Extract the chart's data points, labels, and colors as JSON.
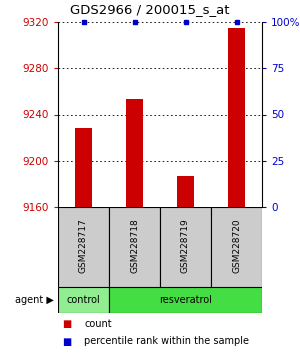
{
  "title": "GDS2966 / 200015_s_at",
  "samples": [
    "GSM228717",
    "GSM228718",
    "GSM228719",
    "GSM228720"
  ],
  "count_values": [
    9228,
    9253,
    9187,
    9315
  ],
  "percentile_values": [
    100,
    100,
    100,
    100
  ],
  "ymin": 9160,
  "ymax": 9320,
  "yticks": [
    9160,
    9200,
    9240,
    9280,
    9320
  ],
  "y2ticks": [
    0,
    25,
    50,
    75,
    100
  ],
  "y2labels": [
    "0",
    "25",
    "50",
    "75",
    "100%"
  ],
  "bar_color": "#cc0000",
  "pct_color": "#0000cc",
  "title_color": "#000000",
  "ytick_color": "#cc0000",
  "y2tick_color": "#0000cc",
  "legend_count_label": "count",
  "legend_pct_label": "percentile rank within the sample",
  "bg_color": "#ffffff",
  "bar_width": 0.35,
  "sample_box_color": "#cccccc",
  "control_color": "#90ee90",
  "resveratrol_color": "#44dd44"
}
